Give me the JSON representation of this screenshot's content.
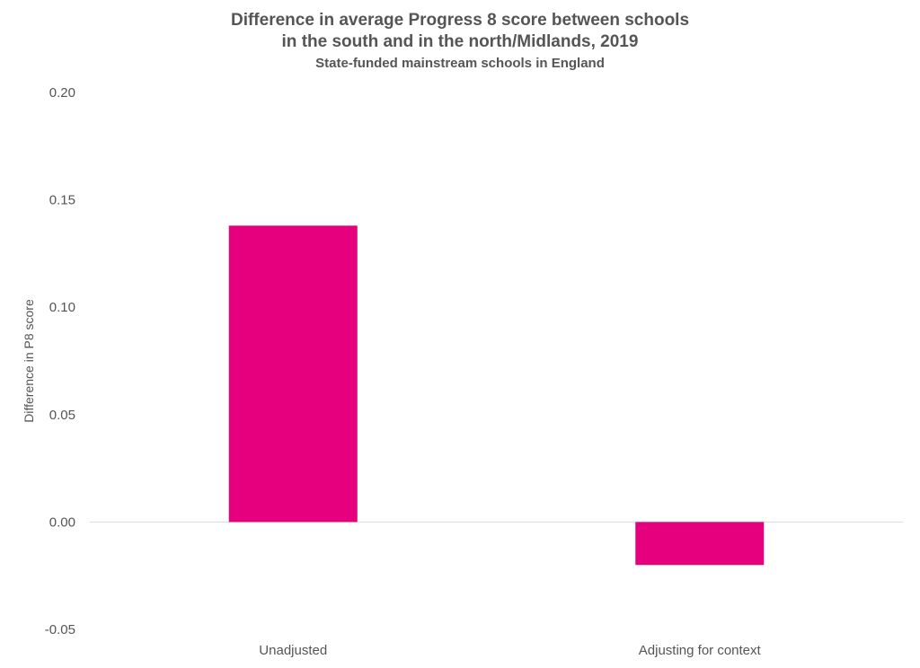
{
  "chart_data": {
    "type": "bar",
    "title": "Difference in average Progress 8 score between schools",
    "title_line2": "in the south and in the north/Midlands, 2019",
    "subtitle": "State-funded mainstream schools in England",
    "xlabel": "",
    "ylabel": "Difference in P8 score",
    "categories": [
      "Unadjusted",
      "Adjusting for context"
    ],
    "values": [
      0.138,
      -0.02
    ],
    "ylim": [
      -0.05,
      0.2
    ],
    "yticks": [
      -0.05,
      0.0,
      0.05,
      0.1,
      0.15,
      0.2
    ],
    "ytick_labels": [
      "-0.05",
      "0.00",
      "0.05",
      "0.10",
      "0.15",
      "0.20"
    ],
    "grid": false,
    "legend": "none",
    "bar_color": "#e6007e"
  }
}
